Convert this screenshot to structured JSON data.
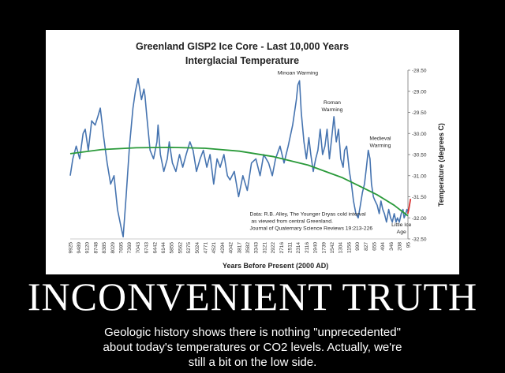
{
  "poster": {
    "headline": "INCONVENIENT TRUTH",
    "caption_lines": [
      "Geologic history shows there is nothing \"unprecedented\"",
      "about today's temperatures or CO2 levels. Actually, we're",
      "still a bit on the low side."
    ]
  },
  "chart_data": {
    "type": "line",
    "title": "Greenland GISP2 Ice Core - Last 10,000 Years",
    "subtitle": "Interglacial Temperature",
    "xlabel": "Years Before Present (2000 AD)",
    "ylabel": "Temperature (degrees C)",
    "ylim": [
      -32.5,
      -28.5
    ],
    "y_ticks": [
      "-28.50",
      "-29.00",
      "-29.50",
      "-30.00",
      "-30.50",
      "-31.00",
      "-31.50",
      "-32.00",
      "-32.50"
    ],
    "x_ticks": [
      "9925",
      "9489",
      "9120",
      "8748",
      "8385",
      "8029",
      "7695",
      "7369",
      "7043",
      "6743",
      "6442",
      "6144",
      "5855",
      "5562",
      "5275",
      "5024",
      "4771",
      "4521",
      "4294",
      "4042",
      "3817",
      "3582",
      "3343",
      "3121",
      "2922",
      "2716",
      "2511",
      "2314",
      "2116",
      "1940",
      "1739",
      "1542",
      "1304",
      "1156",
      "990",
      "827",
      "655",
      "494",
      "346",
      "208",
      "95"
    ],
    "x_range": [
      9925,
      95
    ],
    "grid": false,
    "series": [
      {
        "color": "#4674b0",
        "x": [
          9925,
          9850,
          9750,
          9650,
          9550,
          9489,
          9400,
          9300,
          9200,
          9120,
          9050,
          8950,
          8850,
          8748,
          8650,
          8550,
          8450,
          8385,
          8300,
          8200,
          8100,
          8029,
          7950,
          7850,
          7780,
          7750,
          7695,
          7600,
          7500,
          7400,
          7369,
          7300,
          7200,
          7100,
          7043,
          6950,
          6850,
          6743,
          6650,
          6550,
          6442,
          6350,
          6250,
          6144,
          6050,
          5950,
          5855,
          5750,
          5650,
          5562,
          5450,
          5350,
          5275,
          5150,
          5024,
          4900,
          4771,
          4650,
          4521,
          4400,
          4294,
          4150,
          4042,
          3950,
          3817,
          3700,
          3582,
          3450,
          3343,
          3300,
          3250,
          3200,
          3121,
          3050,
          2980,
          2922,
          2850,
          2780,
          2716,
          2650,
          2580,
          2511,
          2450,
          2380,
          2314,
          2250,
          2180,
          2116,
          2050,
          1980,
          1940,
          1880,
          1800,
          1739,
          1680,
          1610,
          1542,
          1480,
          1420,
          1360,
          1304,
          1250,
          1200,
          1156,
          1100,
          1050,
          990,
          930,
          880,
          827,
          780,
          720,
          655,
          600,
          550,
          494,
          440,
          400,
          346,
          290,
          240,
          208,
          160,
          125,
          100
        ],
        "y": [
          -31.0,
          -30.6,
          -30.3,
          -30.6,
          -30.0,
          -29.9,
          -30.4,
          -29.7,
          -29.8,
          -29.6,
          -29.4,
          -30.1,
          -30.7,
          -31.2,
          -31.0,
          -31.8,
          -32.2,
          -32.45,
          -31.5,
          -30.3,
          -29.4,
          -29.0,
          -28.7,
          -29.2,
          -28.95,
          -29.1,
          -29.6,
          -30.4,
          -30.6,
          -30.2,
          -29.8,
          -30.5,
          -30.9,
          -30.6,
          -30.2,
          -30.7,
          -30.9,
          -30.5,
          -30.8,
          -30.5,
          -30.2,
          -30.4,
          -30.9,
          -30.6,
          -30.4,
          -30.8,
          -30.5,
          -31.2,
          -30.6,
          -30.8,
          -30.5,
          -31.0,
          -31.1,
          -30.9,
          -31.5,
          -31.0,
          -31.35,
          -30.7,
          -30.6,
          -31.0,
          -30.5,
          -30.7,
          -31.0,
          -30.6,
          -30.3,
          -30.7,
          -30.3,
          -29.8,
          -29.2,
          -28.85,
          -28.75,
          -29.5,
          -30.2,
          -30.6,
          -30.1,
          -30.5,
          -30.9,
          -30.6,
          -30.4,
          -29.9,
          -30.5,
          -30.3,
          -29.9,
          -30.6,
          -30.1,
          -29.6,
          -30.2,
          -29.9,
          -30.6,
          -30.8,
          -30.4,
          -30.3,
          -30.9,
          -31.2,
          -31.6,
          -31.9,
          -32.0,
          -31.7,
          -31.4,
          -31.2,
          -30.8,
          -30.4,
          -30.6,
          -31.2,
          -31.5,
          -31.6,
          -31.7,
          -31.9,
          -31.6,
          -31.8,
          -31.9,
          -32.1,
          -31.8,
          -32.0,
          -32.1,
          -31.9,
          -32.1,
          -32.0,
          -32.1,
          -31.9,
          -31.8,
          -32.0,
          -31.9,
          -31.8,
          -31.85
        ]
      },
      {
        "color": "#2a9a3a",
        "x": [
          9925,
          9000,
          8000,
          7000,
          6000,
          5000,
          4000,
          3000,
          2000,
          1500,
          1000,
          500,
          100
        ],
        "y": [
          -30.48,
          -30.38,
          -30.34,
          -30.33,
          -30.35,
          -30.42,
          -30.55,
          -30.75,
          -31.05,
          -31.25,
          -31.45,
          -31.7,
          -31.95
        ]
      },
      {
        "color": "#d93030",
        "x": [
          100,
          60,
          20
        ],
        "y": [
          -31.9,
          -31.75,
          -31.55
        ]
      }
    ],
    "annotations": [
      {
        "id": "minoan",
        "lines": [
          "Minoan Warming"
        ],
        "x": 3300,
        "y": -28.6
      },
      {
        "id": "roman",
        "lines": [
          "Roman",
          "Warming"
        ],
        "x": 2300,
        "y": -29.3
      },
      {
        "id": "medieval",
        "lines": [
          "Medieval",
          "Warming"
        ],
        "x": 900,
        "y": -30.15
      },
      {
        "id": "little-ice-age",
        "lines": [
          "Little Ice",
          "Age"
        ],
        "x": 285,
        "y": -32.2
      },
      {
        "id": "source",
        "lines": [
          "Data: R.B. Alley,  The Younger Dryas cold interval",
          "  as viewed from central Greenland.",
          "Journal of Quaternary  Science Reviews 19:213-226"
        ],
        "x": 4700,
        "y": -31.95
      }
    ]
  }
}
